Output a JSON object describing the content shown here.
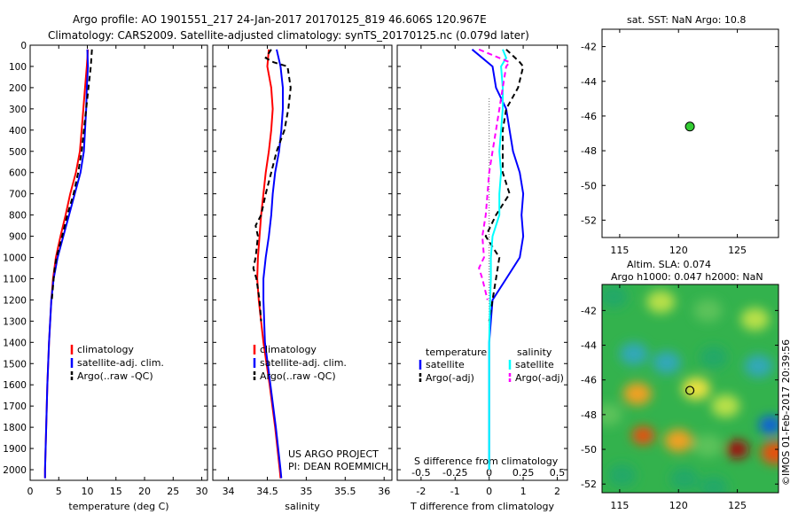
{
  "header": {
    "line1": "Argo profile: AO 1901551_217 24-Jan-2017 20170125_819 46.606S 120.967E",
    "line2": "Climatology: CARS2009. Satellite-adjusted climatology: synTS_20170125.nc (0.079d later)"
  },
  "colors": {
    "climatology": "#ff0000",
    "satellite": "#0000ff",
    "argo": "#000000",
    "sat_salinity": "#00ffff",
    "argo_salinity": "#ff00ff",
    "marker": "#33cc33"
  },
  "chart_data": [
    {
      "type": "line",
      "id": "temperature",
      "xlabel": "temperature (deg C)",
      "ylabel": "",
      "xlim": [
        0,
        31
      ],
      "ylim": [
        2050,
        0
      ],
      "xticks": [
        0,
        5,
        10,
        15,
        20,
        25,
        30
      ],
      "yticks": [
        0,
        100,
        200,
        300,
        400,
        500,
        600,
        700,
        800,
        900,
        1000,
        1100,
        1200,
        1300,
        1400,
        1500,
        1600,
        1700,
        1800,
        1900,
        2000
      ],
      "series": [
        {
          "name": "climatology",
          "color": "#ff0000",
          "dash": "",
          "depth": [
            20,
            100,
            200,
            300,
            400,
            500,
            600,
            700,
            800,
            900,
            1000,
            1100,
            1200,
            1400,
            1600,
            1800,
            2000,
            2040
          ],
          "values": [
            10.1,
            9.9,
            9.6,
            9.3,
            9.0,
            8.7,
            8.0,
            7.0,
            6.2,
            5.3,
            4.5,
            4.0,
            3.7,
            3.3,
            3.0,
            2.8,
            2.6,
            2.6
          ]
        },
        {
          "name": "satellite-adj. clim.",
          "color": "#0000ff",
          "dash": "",
          "depth": [
            20,
            100,
            200,
            300,
            400,
            500,
            600,
            700,
            800,
            900,
            1000,
            1100,
            1200,
            1400,
            1600,
            1800,
            2000,
            2040
          ],
          "values": [
            10.0,
            10.1,
            9.9,
            9.8,
            9.6,
            9.4,
            8.8,
            7.8,
            6.8,
            5.8,
            4.8,
            4.1,
            3.7,
            3.3,
            3.0,
            2.8,
            2.6,
            2.6
          ]
        },
        {
          "name": "Argo(..raw -QC)",
          "color": "#000000",
          "dash": "6,4",
          "depth": [
            20,
            100,
            200,
            300,
            400,
            500,
            600,
            700,
            800,
            900,
            1000,
            1050,
            1100,
            1200
          ],
          "values": [
            10.8,
            10.6,
            10.2,
            9.8,
            9.4,
            9.0,
            8.4,
            7.6,
            6.5,
            5.6,
            4.6,
            4.3,
            4.1,
            3.8
          ]
        }
      ],
      "legend": [
        "climatology",
        "satellite-adj. clim.",
        "Argo(..raw -QC)"
      ]
    },
    {
      "type": "line",
      "id": "salinity",
      "xlabel": "salinity",
      "ylabel": "",
      "xlim": [
        33.8,
        36.1
      ],
      "ylim": [
        2050,
        0
      ],
      "xticks": [
        34,
        34.5,
        35,
        35.5,
        36
      ],
      "series": [
        {
          "name": "climatology",
          "color": "#ff0000",
          "dash": "",
          "depth": [
            20,
            100,
            200,
            300,
            400,
            500,
            600,
            700,
            800,
            900,
            1000,
            1100,
            1200,
            1400,
            1600,
            1800,
            2000,
            2040
          ],
          "values": [
            34.52,
            34.5,
            34.55,
            34.57,
            34.55,
            34.52,
            34.48,
            34.45,
            34.42,
            34.4,
            34.38,
            34.37,
            34.39,
            34.45,
            34.53,
            34.6,
            34.66,
            34.67
          ]
        },
        {
          "name": "satellite-adj. clim.",
          "color": "#0000ff",
          "dash": "",
          "depth": [
            20,
            100,
            200,
            300,
            400,
            500,
            600,
            700,
            800,
            900,
            1000,
            1100,
            1200,
            1400,
            1600,
            1800,
            2000,
            2040
          ],
          "values": [
            34.62,
            34.67,
            34.7,
            34.7,
            34.68,
            34.65,
            34.6,
            34.57,
            34.55,
            34.52,
            34.48,
            34.45,
            34.45,
            34.47,
            34.54,
            34.61,
            34.67,
            34.68
          ]
        },
        {
          "name": "Argo(..raw -QC)",
          "color": "#000000",
          "dash": "6,4",
          "depth": [
            20,
            60,
            80,
            100,
            200,
            300,
            400,
            500,
            600,
            700,
            800,
            850,
            900,
            1000,
            1050,
            1100,
            1200,
            1300
          ],
          "values": [
            34.55,
            34.48,
            34.58,
            34.76,
            34.8,
            34.77,
            34.72,
            34.62,
            34.55,
            34.48,
            34.42,
            34.35,
            34.38,
            34.35,
            34.32,
            34.36,
            34.4,
            34.42
          ]
        }
      ],
      "legend": [
        "climatology",
        "satellite-adj. clim.",
        "Argo(..raw -QC)"
      ],
      "annotation": [
        "US ARGO PROJECT",
        "PI: DEAN ROEMMICH"
      ]
    },
    {
      "type": "line",
      "id": "difference",
      "xlabel": "T difference from climatology",
      "xlabel_top": "S difference from climatology",
      "xlim": [
        -2.7,
        2.3
      ],
      "ylim": [
        2050,
        0
      ],
      "xticks": [
        -2,
        -1,
        0,
        1,
        2
      ],
      "xticks_S_labels": [
        "-0.5",
        "-0.25",
        "0",
        "0.25",
        "0.5"
      ],
      "series": [
        {
          "name": "temperature satellite",
          "color": "#0000ff",
          "dash": "",
          "depth": [
            20,
            100,
            200,
            300,
            400,
            500,
            600,
            700,
            800,
            900,
            1000,
            1100,
            1200,
            1300,
            1400,
            1600,
            1800,
            2000
          ],
          "values": [
            -0.5,
            0.1,
            0.2,
            0.5,
            0.6,
            0.7,
            0.9,
            1.0,
            0.95,
            1.0,
            0.9,
            0.5,
            0.1,
            0.05,
            0.0,
            0.0,
            0.0,
            0.0
          ]
        },
        {
          "name": "temperature Argo(-adj)",
          "color": "#000000",
          "dash": "6,4",
          "depth": [
            20,
            80,
            100,
            200,
            300,
            400,
            500,
            600,
            700,
            800,
            900,
            1000,
            1100,
            1200,
            1300
          ],
          "values": [
            0.5,
            0.9,
            1.0,
            0.85,
            0.5,
            0.4,
            0.4,
            0.4,
            0.6,
            0.2,
            -0.1,
            0.3,
            0.2,
            0.1,
            0.0
          ]
        },
        {
          "name": "salinity satellite",
          "color": "#00ffff",
          "dash": "",
          "depth": [
            20,
            60,
            100,
            200,
            300,
            400,
            500,
            600,
            700,
            800,
            900,
            1000,
            1100,
            1200,
            1400,
            1600,
            1800,
            2000
          ],
          "values": [
            0.4,
            0.5,
            0.35,
            0.4,
            0.4,
            0.35,
            0.3,
            0.35,
            0.3,
            0.3,
            0.1,
            0.05,
            0.05,
            0.03,
            0.0,
            0.0,
            0.0,
            0.0
          ]
        },
        {
          "name": "salinity Argo(-adj)",
          "color": "#ff00ff",
          "dash": "6,4",
          "depth": [
            20,
            80,
            100,
            200,
            300,
            400,
            500,
            600,
            700,
            800,
            900,
            1000,
            1050,
            1100,
            1200
          ],
          "values": [
            -0.3,
            0.6,
            0.5,
            0.4,
            0.3,
            0.2,
            0.1,
            0.0,
            -0.05,
            -0.1,
            -0.2,
            -0.15,
            -0.3,
            -0.2,
            -0.05
          ]
        }
      ],
      "legend_titles": [
        "temperature",
        "salinity"
      ],
      "legend": [
        "satellite",
        "Argo(-adj)",
        "satellite",
        "Argo(-adj)"
      ]
    },
    {
      "type": "scatter",
      "id": "sst-map",
      "title": "sat. SST: NaN Argo: 10.8",
      "xlim": [
        113.5,
        128.5
      ],
      "ylim": [
        -53,
        -41
      ],
      "xticks": [
        115,
        120,
        125
      ],
      "yticks": [
        -42,
        -44,
        -46,
        -48,
        -50,
        -52
      ],
      "points": [
        {
          "x": 120.967,
          "y": -46.606
        }
      ]
    },
    {
      "type": "heatmap",
      "id": "sla-map",
      "title_line1": "Altim. SLA: 0.074",
      "title_line2": "Argo h1000: 0.047 h2000: NaN",
      "xlim": [
        113.5,
        128.5
      ],
      "ylim": [
        -52.5,
        -40.5
      ],
      "xticks": [
        115,
        120,
        125
      ],
      "yticks": [
        -42,
        -44,
        -46,
        -48,
        -50,
        -52
      ],
      "points": [
        {
          "x": 120.967,
          "y": -46.606
        }
      ],
      "blobs": [
        {
          "x": 114.5,
          "y": -41.2,
          "v": -0.6
        },
        {
          "x": 118.5,
          "y": -41.5,
          "v": 0.3
        },
        {
          "x": 122.5,
          "y": -42,
          "v": -0.3
        },
        {
          "x": 126.5,
          "y": -42.5,
          "v": 0.1
        },
        {
          "x": 116.2,
          "y": -44.5,
          "v": -0.8
        },
        {
          "x": 119,
          "y": -45,
          "v": -1.0
        },
        {
          "x": 123,
          "y": -44.7,
          "v": -0.6
        },
        {
          "x": 126.8,
          "y": -45.2,
          "v": -0.9
        },
        {
          "x": 116.5,
          "y": -46.8,
          "v": 0.9
        },
        {
          "x": 121.5,
          "y": -46.5,
          "v": 0.6
        },
        {
          "x": 124,
          "y": -47.5,
          "v": 0.3
        },
        {
          "x": 117,
          "y": -49.2,
          "v": 1.6
        },
        {
          "x": 120,
          "y": -49.5,
          "v": 1.2
        },
        {
          "x": 125,
          "y": -50,
          "v": 2.0
        },
        {
          "x": 127.8,
          "y": -48.6,
          "v": -2.0
        },
        {
          "x": 128.2,
          "y": -50.2,
          "v": 1.4
        },
        {
          "x": 115.2,
          "y": -51.5,
          "v": -0.6
        },
        {
          "x": 120.5,
          "y": -51.7,
          "v": -0.5
        },
        {
          "x": 123,
          "y": -52.2,
          "v": -0.6
        },
        {
          "x": 114,
          "y": -48,
          "v": -0.3
        },
        {
          "x": 122.5,
          "y": -49.8,
          "v": -0.2
        }
      ]
    }
  ],
  "footer_vertical": "©IMOS 01-Feb-2017 20:39:56"
}
